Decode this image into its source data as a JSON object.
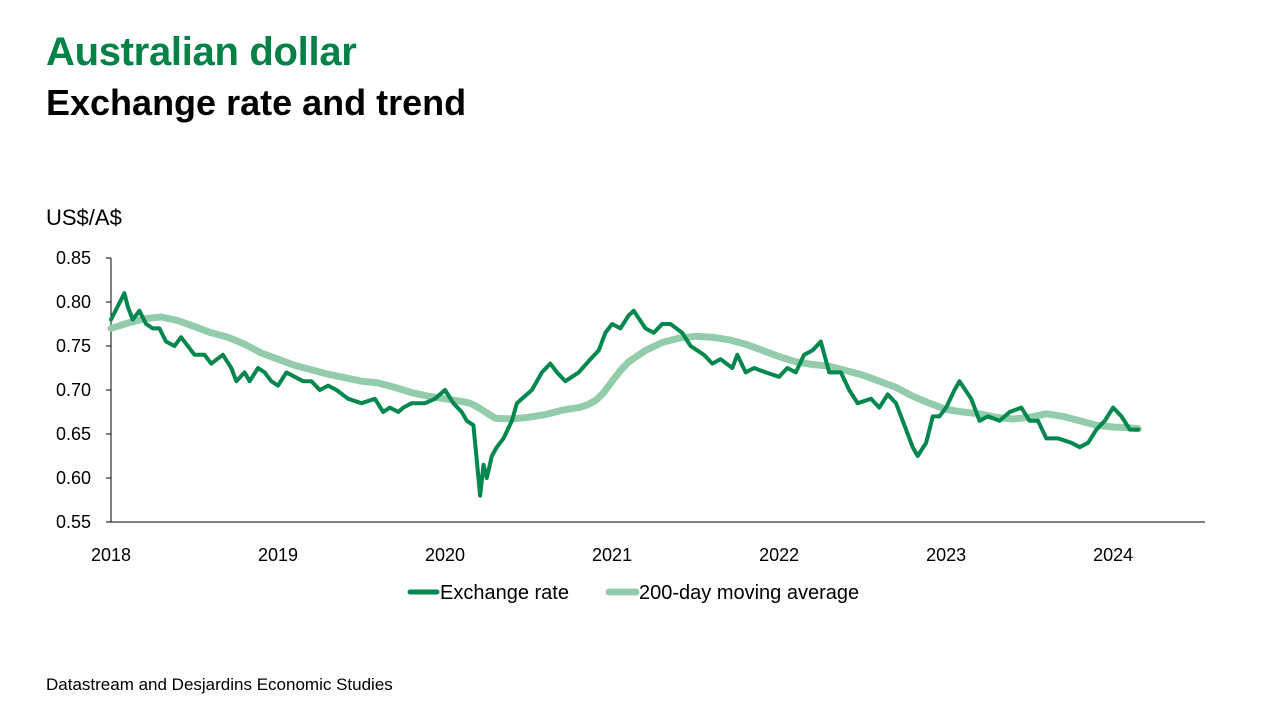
{
  "header": {
    "title": "Australian dollar",
    "subtitle": "Exchange rate and trend"
  },
  "source": "Datastream and Desjardins Economic Studies",
  "colors": {
    "exchange_rate": "#00874E",
    "moving_average": "#93CCAA",
    "title": "#008246"
  },
  "chart_data": {
    "type": "line",
    "title": "Australian dollar",
    "subtitle": "Exchange rate and trend",
    "ylabel": "US$/A$",
    "xlabel": "",
    "ylim": [
      0.55,
      0.85
    ],
    "xlim": [
      2018.0,
      2024.55
    ],
    "yticks": [
      "0.85",
      "0.80",
      "0.75",
      "0.70",
      "0.65",
      "0.60",
      "0.55"
    ],
    "ytick_values": [
      0.85,
      0.8,
      0.75,
      0.7,
      0.65,
      0.6,
      0.55
    ],
    "xticks": [
      "2018",
      "2019",
      "2020",
      "2021",
      "2022",
      "2023",
      "2024"
    ],
    "xtick_values": [
      2018,
      2019,
      2020,
      2021,
      2022,
      2023,
      2024
    ],
    "grid": false,
    "legend": "bottom",
    "series": [
      {
        "name": "Exchange rate",
        "x": [
          2018.0,
          2018.04,
          2018.08,
          2018.1,
          2018.13,
          2018.17,
          2018.21,
          2018.25,
          2018.29,
          2018.33,
          2018.38,
          2018.42,
          2018.5,
          2018.56,
          2018.6,
          2018.67,
          2018.72,
          2018.75,
          2018.8,
          2018.83,
          2018.88,
          2018.92,
          2018.96,
          2019.0,
          2019.05,
          2019.1,
          2019.15,
          2019.2,
          2019.25,
          2019.3,
          2019.35,
          2019.42,
          2019.5,
          2019.58,
          2019.63,
          2019.67,
          2019.72,
          2019.75,
          2019.8,
          2019.88,
          2019.94,
          2020.0,
          2020.05,
          2020.1,
          2020.13,
          2020.17,
          2020.19,
          2020.21,
          2020.23,
          2020.25,
          2020.28,
          2020.31,
          2020.35,
          2020.4,
          2020.43,
          2020.46,
          2020.52,
          2020.58,
          2020.63,
          2020.67,
          2020.72,
          2020.8,
          2020.87,
          2020.92,
          2020.96,
          2021.0,
          2021.05,
          2021.1,
          2021.13,
          2021.2,
          2021.25,
          2021.3,
          2021.35,
          2021.42,
          2021.47,
          2021.55,
          2021.6,
          2021.65,
          2021.72,
          2021.75,
          2021.8,
          2021.85,
          2021.92,
          2022.0,
          2022.05,
          2022.1,
          2022.15,
          2022.2,
          2022.25,
          2022.3,
          2022.37,
          2022.42,
          2022.47,
          2022.55,
          2022.6,
          2022.65,
          2022.7,
          2022.75,
          2022.8,
          2022.83,
          2022.88,
          2022.92,
          2022.96,
          2023.0,
          2023.05,
          2023.08,
          2023.15,
          2023.2,
          2023.25,
          2023.32,
          2023.38,
          2023.45,
          2023.5,
          2023.55,
          2023.6,
          2023.67,
          2023.75,
          2023.8,
          2023.85,
          2023.9,
          2023.95,
          2024.0,
          2024.05,
          2024.1,
          2024.15
        ],
        "values": [
          0.78,
          0.795,
          0.81,
          0.795,
          0.78,
          0.79,
          0.775,
          0.77,
          0.77,
          0.755,
          0.75,
          0.76,
          0.74,
          0.74,
          0.73,
          0.74,
          0.725,
          0.71,
          0.72,
          0.71,
          0.725,
          0.72,
          0.71,
          0.705,
          0.72,
          0.715,
          0.71,
          0.71,
          0.7,
          0.705,
          0.7,
          0.69,
          0.685,
          0.69,
          0.675,
          0.68,
          0.675,
          0.68,
          0.685,
          0.685,
          0.69,
          0.7,
          0.685,
          0.675,
          0.665,
          0.66,
          0.62,
          0.58,
          0.615,
          0.6,
          0.625,
          0.635,
          0.645,
          0.665,
          0.685,
          0.69,
          0.7,
          0.72,
          0.73,
          0.72,
          0.71,
          0.72,
          0.735,
          0.745,
          0.765,
          0.775,
          0.77,
          0.785,
          0.79,
          0.77,
          0.765,
          0.775,
          0.775,
          0.765,
          0.75,
          0.74,
          0.73,
          0.735,
          0.725,
          0.74,
          0.72,
          0.725,
          0.72,
          0.715,
          0.725,
          0.72,
          0.74,
          0.745,
          0.755,
          0.72,
          0.72,
          0.7,
          0.685,
          0.69,
          0.68,
          0.695,
          0.685,
          0.66,
          0.635,
          0.625,
          0.64,
          0.67,
          0.67,
          0.68,
          0.7,
          0.71,
          0.69,
          0.665,
          0.67,
          0.665,
          0.675,
          0.68,
          0.665,
          0.665,
          0.645,
          0.645,
          0.64,
          0.635,
          0.64,
          0.655,
          0.665,
          0.68,
          0.67,
          0.655,
          0.655
        ]
      },
      {
        "name": "200-day moving average",
        "x": [
          2018.0,
          2018.1,
          2018.2,
          2018.3,
          2018.4,
          2018.5,
          2018.6,
          2018.7,
          2018.8,
          2018.9,
          2019.0,
          2019.1,
          2019.2,
          2019.3,
          2019.4,
          2019.5,
          2019.6,
          2019.7,
          2019.8,
          2019.9,
          2020.0,
          2020.1,
          2020.15,
          2020.2,
          2020.25,
          2020.3,
          2020.4,
          2020.5,
          2020.6,
          2020.7,
          2020.8,
          2020.85,
          2020.9,
          2020.95,
          2021.0,
          2021.05,
          2021.1,
          2021.2,
          2021.3,
          2021.4,
          2021.5,
          2021.6,
          2021.7,
          2021.8,
          2021.9,
          2022.0,
          2022.1,
          2022.2,
          2022.3,
          2022.4,
          2022.5,
          2022.6,
          2022.7,
          2022.8,
          2022.9,
          2023.0,
          2023.1,
          2023.2,
          2023.3,
          2023.4,
          2023.5,
          2023.6,
          2023.7,
          2023.8,
          2023.9,
          2024.0,
          2024.1,
          2024.15
        ],
        "values": [
          0.77,
          0.776,
          0.781,
          0.783,
          0.779,
          0.772,
          0.765,
          0.76,
          0.752,
          0.742,
          0.735,
          0.728,
          0.723,
          0.718,
          0.714,
          0.71,
          0.708,
          0.703,
          0.697,
          0.693,
          0.69,
          0.687,
          0.685,
          0.68,
          0.674,
          0.668,
          0.667,
          0.669,
          0.672,
          0.677,
          0.68,
          0.683,
          0.688,
          0.697,
          0.71,
          0.722,
          0.732,
          0.745,
          0.754,
          0.759,
          0.761,
          0.76,
          0.757,
          0.752,
          0.745,
          0.738,
          0.732,
          0.729,
          0.727,
          0.722,
          0.717,
          0.71,
          0.703,
          0.693,
          0.685,
          0.678,
          0.675,
          0.673,
          0.669,
          0.667,
          0.669,
          0.673,
          0.67,
          0.665,
          0.66,
          0.658,
          0.657,
          0.656
        ]
      }
    ]
  }
}
